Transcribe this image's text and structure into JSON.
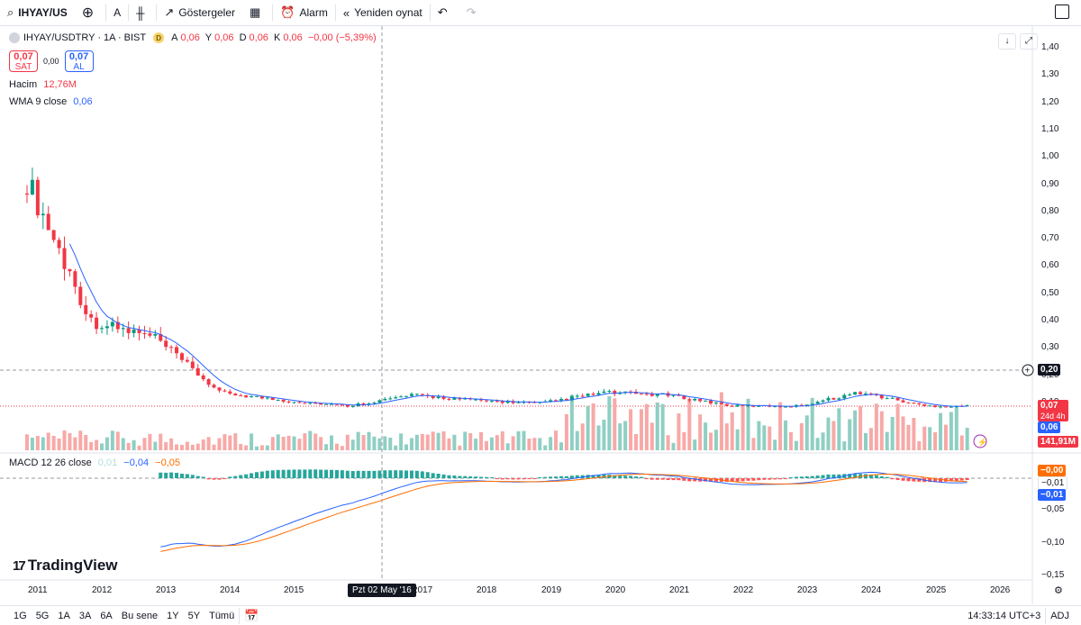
{
  "toolbar": {
    "symbol": "IHYAY/US",
    "add_symbol_icon": "plus-circle-icon",
    "interval": "A",
    "chart_type_icon": "candles-icon",
    "indicators_label": "Göstergeler",
    "layouts_icon": "grid-icon",
    "alarm_label": "Alarm",
    "replay_label": "Yeniden oynat",
    "undo_icon": "undo-icon",
    "redo_icon": "redo-icon"
  },
  "legend": {
    "title": "IHYAY/USDTRY · 1A · BIST",
    "badge": "D",
    "ohlc": [
      {
        "k": "A",
        "v": "0,06"
      },
      {
        "k": "Y",
        "v": "0,06"
      },
      {
        "k": "D",
        "v": "0,06"
      },
      {
        "k": "K",
        "v": "0,06"
      }
    ],
    "change": "−0,00 (−5,39%)"
  },
  "trade": {
    "sell_price": "0,07",
    "sell_label": "SAT",
    "spread": "0,00",
    "buy_price": "0,07",
    "buy_label": "AL"
  },
  "indicators": {
    "volume": {
      "label": "Hacim",
      "value": "12,76M"
    },
    "wma": {
      "label": "WMA 9 close",
      "value": "0,06"
    },
    "macd": {
      "label": "MACD 12 26 close",
      "v1": "0,01",
      "v2": "−0,04",
      "v3": "−0,05"
    }
  },
  "price_axis": [
    "1,40",
    "1,30",
    "1,20",
    "1,10",
    "1,00",
    "0,90",
    "0,80",
    "0,70",
    "0,60",
    "0,50",
    "0,40",
    "0,30",
    "0,20",
    "0,10"
  ],
  "macd_axis": [
    "0,00",
    "−0,05",
    "−0,10",
    "−0,15"
  ],
  "price_tags": {
    "crosshair": "0,20",
    "last": "0,07",
    "countdown": "24d 4h",
    "wma": "0,06",
    "volume": "141,91M",
    "macd_a": "−0,00",
    "macd_b": "−0,01",
    "macd_c": "−0,01"
  },
  "time_axis": [
    "2011",
    "2012",
    "2013",
    "2014",
    "2015",
    "2017",
    "2018",
    "2019",
    "2020",
    "2021",
    "2022",
    "2023",
    "2024",
    "2025",
    "2026"
  ],
  "crosshair_date": "Pzt 02 May '16",
  "logo": "TradingView",
  "bottom": {
    "ranges": [
      "1G",
      "5G",
      "1A",
      "3A",
      "6A",
      "Bu sene",
      "1Y",
      "5Y",
      "Tümü"
    ],
    "time": "14:33:14 UTC+3",
    "adj": "ADJ"
  },
  "colors": {
    "up": "#089981",
    "down": "#f23645",
    "wma": "#2962ff",
    "macd_signal": "#ff6d00"
  },
  "chart_data": {
    "type": "candlestick",
    "title": "IHYAY/USDTRY · 1A · BIST",
    "years": [
      2011,
      2012,
      2013,
      2014,
      2015,
      2016,
      2017,
      2018,
      2019,
      2020,
      2021,
      2022,
      2023,
      2024,
      2025
    ],
    "close_approx": [
      0.9,
      0.38,
      0.32,
      0.12,
      0.09,
      0.07,
      0.11,
      0.09,
      0.08,
      0.12,
      0.11,
      0.07,
      0.07,
      0.12,
      0.07
    ],
    "ylim": [
      0,
      1.45
    ],
    "last": 0.07,
    "wma_last": 0.06,
    "volume_last": "141,91M"
  }
}
